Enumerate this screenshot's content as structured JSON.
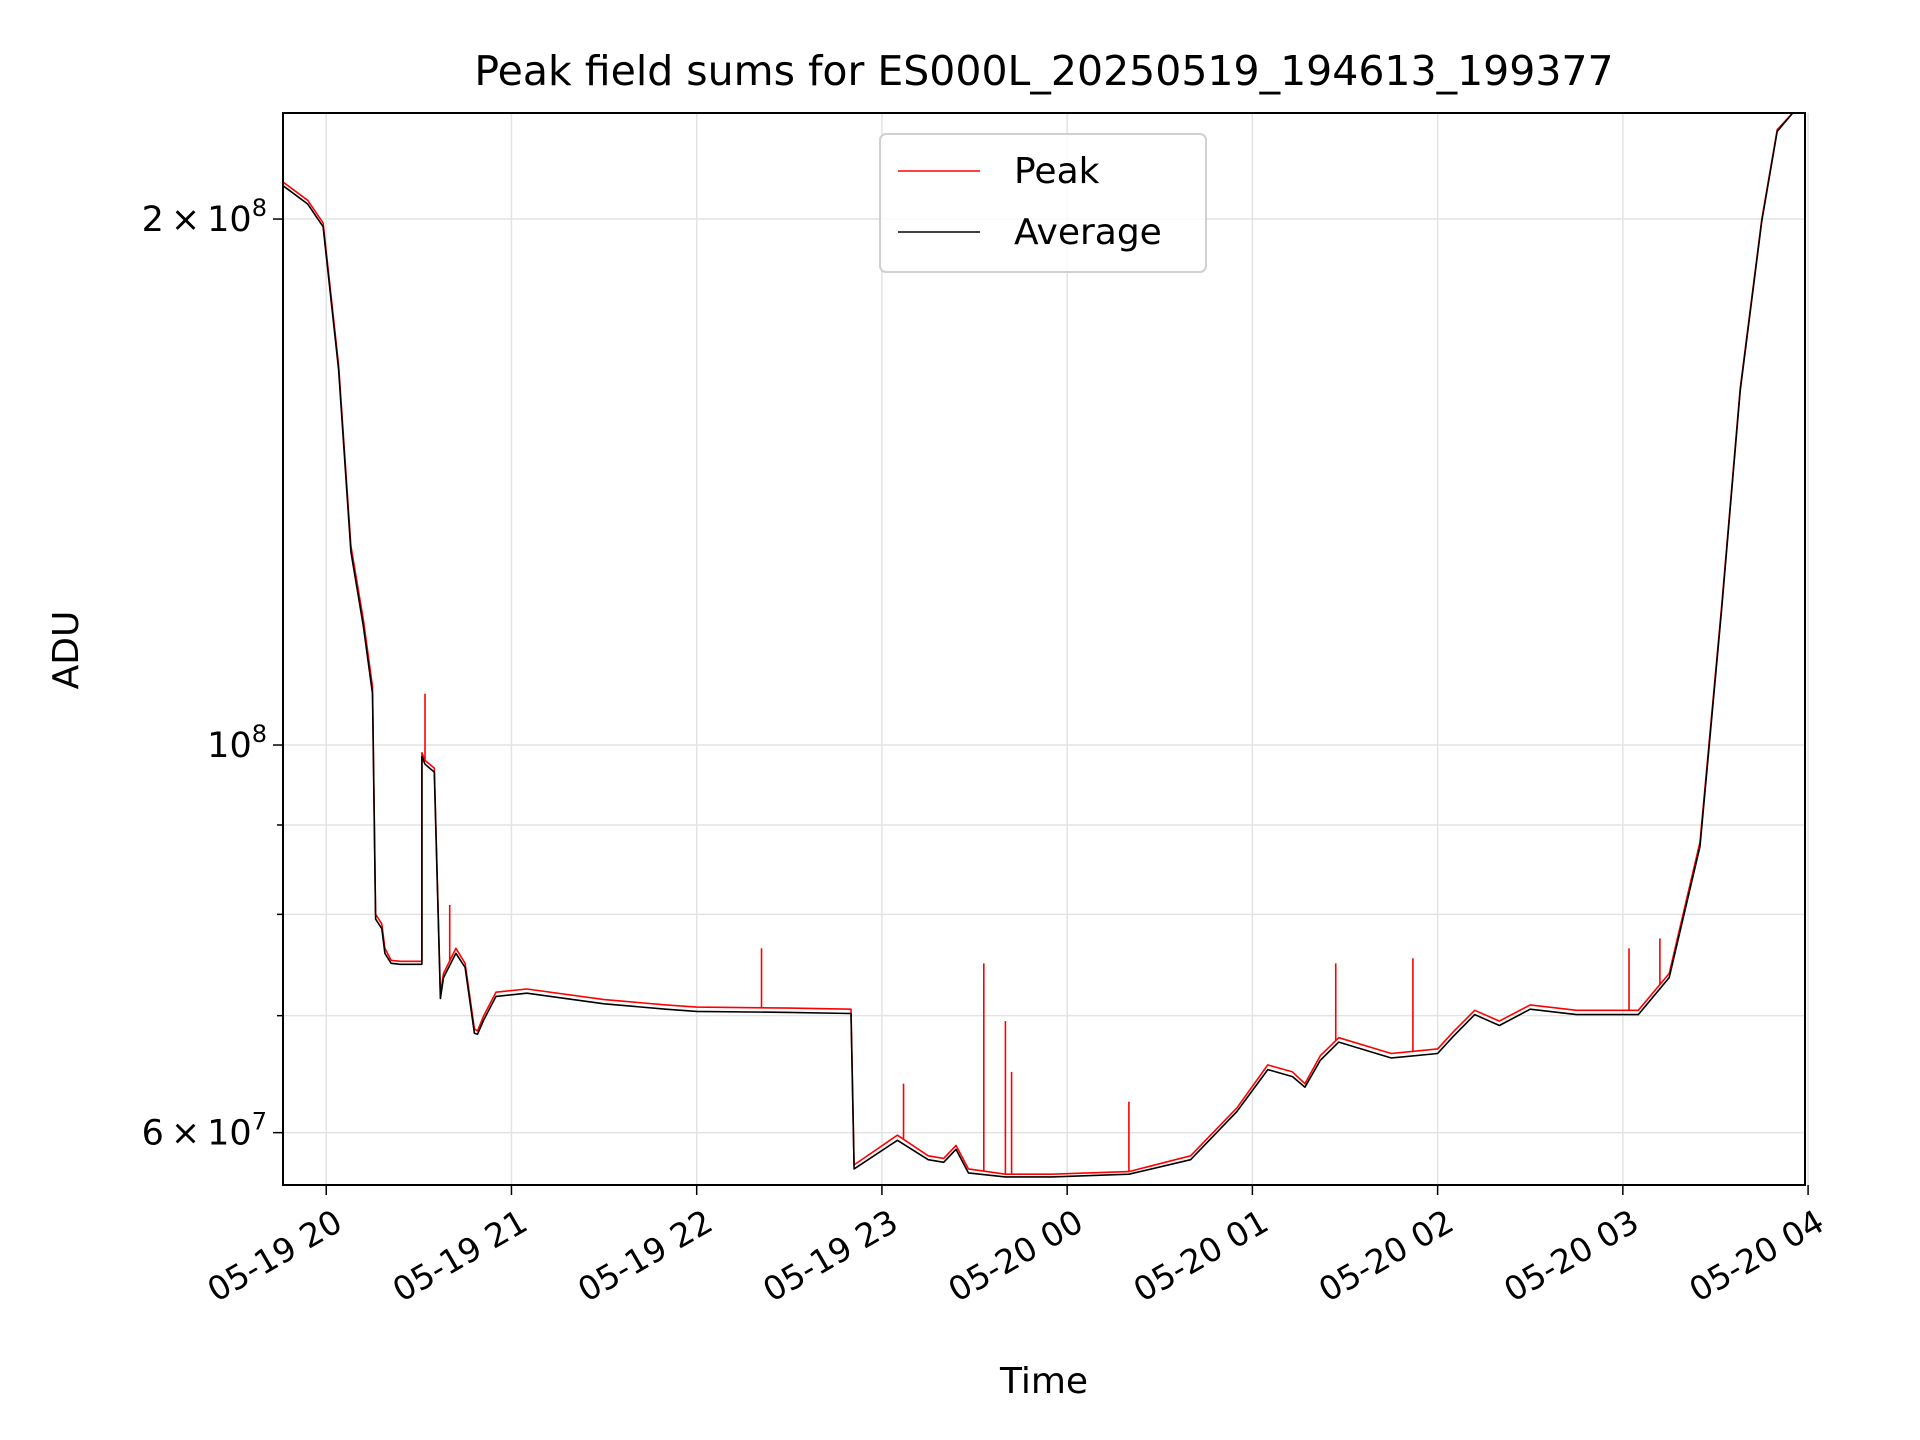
{
  "chart_data": {
    "type": "line",
    "title": "Peak field sums for ES000L_20250519_194613_199377",
    "xlabel": "Time",
    "ylabel": "ADU",
    "yscale": "log",
    "grid": true,
    "legend_placement": "upper center",
    "xlim": [
      "2025-05-19 19:46",
      "2025-05-20 03:59"
    ],
    "ylim": [
      56000000,
      230000000
    ],
    "x_ticks": [
      {
        "t": "2025-05-19 20:00",
        "label": "05-19 20"
      },
      {
        "t": "2025-05-19 21:00",
        "label": "05-19 21"
      },
      {
        "t": "2025-05-19 22:00",
        "label": "05-19 22"
      },
      {
        "t": "2025-05-19 23:00",
        "label": "05-19 23"
      },
      {
        "t": "2025-05-20 00:00",
        "label": "05-20 00"
      },
      {
        "t": "2025-05-20 01:00",
        "label": "05-20 01"
      },
      {
        "t": "2025-05-20 02:00",
        "label": "05-20 02"
      },
      {
        "t": "2025-05-20 03:00",
        "label": "05-20 03"
      },
      {
        "t": "2025-05-20 04:00",
        "label": "05-20 04"
      }
    ],
    "y_major_ticks": [
      {
        "value": 60000000,
        "label_mantissa": "6",
        "label_exp": "7"
      },
      {
        "value": 100000000,
        "label_mantissa": "",
        "label_exp": "8"
      },
      {
        "value": 200000000,
        "label_mantissa": "2",
        "label_exp": "8"
      }
    ],
    "y_minor_ticks": [
      70000000,
      80000000,
      90000000
    ],
    "series": [
      {
        "name": "Peak",
        "color": "#ff0000",
        "x": [
          "2025-05-19 19:46",
          "2025-05-19 19:54",
          "2025-05-19 19:59",
          "2025-05-19 20:04",
          "2025-05-19 20:08",
          "2025-05-19 20:12",
          "2025-05-19 20:15",
          "2025-05-19 20:16",
          "2025-05-19 20:18",
          "2025-05-19 20:19",
          "2025-05-19 20:21",
          "2025-05-19 20:24",
          "2025-05-19 20:31",
          "2025-05-19 20:31",
          "2025-05-19 20:32",
          "2025-05-19 20:35",
          "2025-05-19 20:37",
          "2025-05-19 20:38",
          "2025-05-19 20:42",
          "2025-05-19 20:45",
          "2025-05-19 20:48",
          "2025-05-19 20:49",
          "2025-05-19 20:51",
          "2025-05-19 20:55",
          "2025-05-19 21:05",
          "2025-05-19 21:30",
          "2025-05-19 21:50",
          "2025-05-19 22:00",
          "2025-05-19 22:30",
          "2025-05-19 22:50",
          "2025-05-19 22:51",
          "2025-05-19 23:05",
          "2025-05-19 23:15",
          "2025-05-19 23:20",
          "2025-05-19 23:24",
          "2025-05-19 23:28",
          "2025-05-19 23:40",
          "2025-05-19 23:55",
          "2025-05-20 00:20",
          "2025-05-20 00:40",
          "2025-05-20 00:55",
          "2025-05-20 01:05",
          "2025-05-20 01:13",
          "2025-05-20 01:17",
          "2025-05-20 01:22",
          "2025-05-20 01:28",
          "2025-05-20 01:45",
          "2025-05-20 02:00",
          "2025-05-20 02:05",
          "2025-05-20 02:12",
          "2025-05-20 02:20",
          "2025-05-20 02:30",
          "2025-05-20 02:45",
          "2025-05-20 03:05",
          "2025-05-20 03:15",
          "2025-05-20 03:25",
          "2025-05-20 03:32",
          "2025-05-20 03:38",
          "2025-05-20 03:45",
          "2025-05-20 03:50",
          "2025-05-20 03:55"
        ],
        "y": [
          210000000,
          205000000,
          199000000,
          165000000,
          130000000,
          118000000,
          108000000,
          80000000,
          79000000,
          76500000,
          75300000,
          75200000,
          75200000,
          99000000,
          98000000,
          97000000,
          72000000,
          74000000,
          76500000,
          75000000,
          68800000,
          68600000,
          70000000,
          72200000,
          72500000,
          71500000,
          71000000,
          70800000,
          70700000,
          70600000,
          57500000,
          59800000,
          58200000,
          58000000,
          59000000,
          57200000,
          56800000,
          56800000,
          57000000,
          58200000,
          62000000,
          65600000,
          65000000,
          64000000,
          66400000,
          68000000,
          66600000,
          67000000,
          68500000,
          70500000,
          69500000,
          71000000,
          70500000,
          70500000,
          74000000,
          88000000,
          120000000,
          160000000,
          200000000,
          225000000,
          230000000
        ],
        "spikes": [
          {
            "t": "2025-05-19 20:32",
            "value": 107000000
          },
          {
            "t": "2025-05-19 20:40",
            "value": 81000000
          },
          {
            "t": "2025-05-19 22:21",
            "value": 76500000
          },
          {
            "t": "2025-05-19 23:07",
            "value": 64000000
          },
          {
            "t": "2025-05-19 23:33",
            "value": 75000000
          },
          {
            "t": "2025-05-19 23:40",
            "value": 69500000
          },
          {
            "t": "2025-05-19 23:42",
            "value": 65000000
          },
          {
            "t": "2025-05-20 00:20",
            "value": 62500000
          },
          {
            "t": "2025-05-20 01:27",
            "value": 75000000
          },
          {
            "t": "2025-05-20 01:52",
            "value": 75500000
          },
          {
            "t": "2025-05-20 03:02",
            "value": 76500000
          },
          {
            "t": "2025-05-20 03:12",
            "value": 77500000
          }
        ]
      },
      {
        "name": "Average",
        "color": "#000000",
        "x": [
          "2025-05-19 19:46",
          "2025-05-19 19:54",
          "2025-05-19 19:59",
          "2025-05-19 20:04",
          "2025-05-19 20:08",
          "2025-05-19 20:12",
          "2025-05-19 20:15",
          "2025-05-19 20:16",
          "2025-05-19 20:18",
          "2025-05-19 20:19",
          "2025-05-19 20:21",
          "2025-05-19 20:24",
          "2025-05-19 20:31",
          "2025-05-19 20:31",
          "2025-05-19 20:32",
          "2025-05-19 20:35",
          "2025-05-19 20:37",
          "2025-05-19 20:38",
          "2025-05-19 20:42",
          "2025-05-19 20:45",
          "2025-05-19 20:48",
          "2025-05-19 20:49",
          "2025-05-19 20:51",
          "2025-05-19 20:55",
          "2025-05-19 21:05",
          "2025-05-19 21:30",
          "2025-05-19 21:50",
          "2025-05-19 22:00",
          "2025-05-19 22:30",
          "2025-05-19 22:50",
          "2025-05-19 22:51",
          "2025-05-19 23:05",
          "2025-05-19 23:15",
          "2025-05-19 23:20",
          "2025-05-19 23:24",
          "2025-05-19 23:28",
          "2025-05-19 23:40",
          "2025-05-19 23:55",
          "2025-05-20 00:20",
          "2025-05-20 00:40",
          "2025-05-20 00:55",
          "2025-05-20 01:05",
          "2025-05-20 01:13",
          "2025-05-20 01:17",
          "2025-05-20 01:22",
          "2025-05-20 01:28",
          "2025-05-20 01:45",
          "2025-05-20 02:00",
          "2025-05-20 02:05",
          "2025-05-20 02:12",
          "2025-05-20 02:20",
          "2025-05-20 02:30",
          "2025-05-20 02:45",
          "2025-05-20 03:05",
          "2025-05-20 03:15",
          "2025-05-20 03:25",
          "2025-05-20 03:32",
          "2025-05-20 03:38",
          "2025-05-20 03:45",
          "2025-05-20 03:50",
          "2025-05-20 03:55"
        ],
        "y": [
          209000000,
          204000000,
          198000000,
          164000000,
          129000000,
          117000000,
          107000000,
          79500000,
          78500000,
          76000000,
          75000000,
          74900000,
          74900000,
          98500000,
          97500000,
          96500000,
          71600000,
          73600000,
          76000000,
          74600000,
          68400000,
          68300000,
          69600000,
          71800000,
          72100000,
          71100000,
          70600000,
          70400000,
          70300000,
          70200000,
          57200000,
          59400000,
          57900000,
          57700000,
          58700000,
          56900000,
          56600000,
          56600000,
          56800000,
          57900000,
          61700000,
          65200000,
          64600000,
          63700000,
          66000000,
          67600000,
          66200000,
          66600000,
          68100000,
          70100000,
          69100000,
          70600000,
          70100000,
          70100000,
          73600000,
          87500000,
          119500000,
          159500000,
          199500000,
          224500000,
          230000000
        ],
        "spikes": []
      }
    ]
  }
}
